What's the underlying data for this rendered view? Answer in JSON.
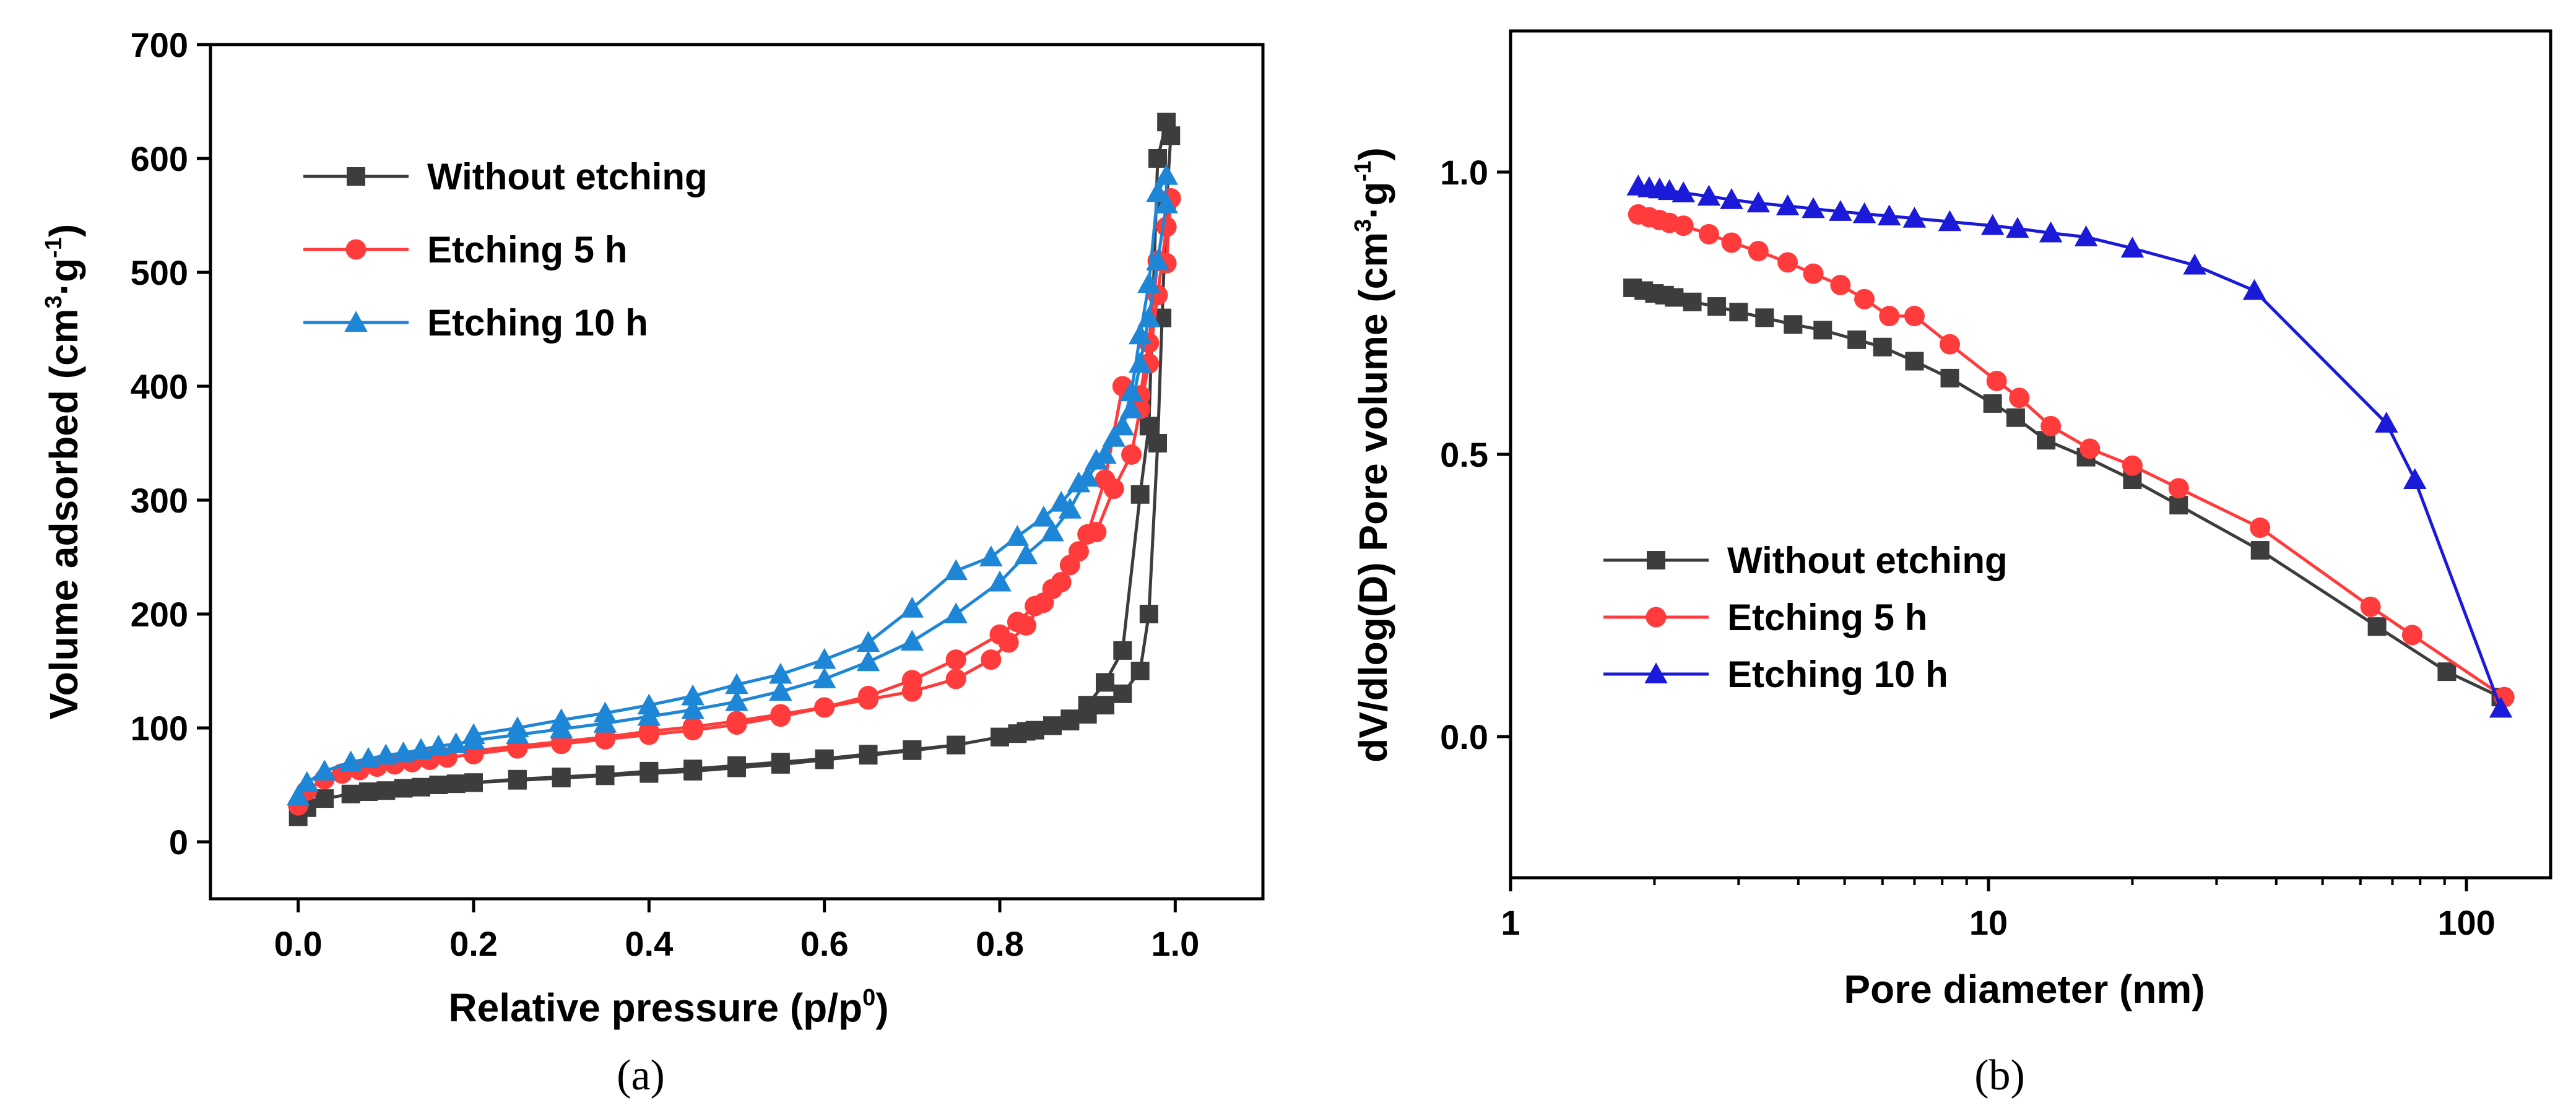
{
  "colors": {
    "without": "#3d3d3d",
    "etch5": "#ff3b3b",
    "etch10_a": "#1e86d6",
    "etch10_b": "#1a1ad8"
  },
  "chart_data": [
    {
      "type": "line",
      "panel_label": "(a)",
      "xlabel": "Relative pressure (p/p",
      "xlabel_sup": "0",
      "xlabel_end": ")",
      "ylabel": "Volume adsorbed (cm",
      "ylabel_sup1": "3",
      "ylabel_mid": "·g",
      "ylabel_sup2": "-1",
      "ylabel_end": ")",
      "xlim": [
        -0.1,
        1.1
      ],
      "ylim": [
        -50,
        700
      ],
      "xticks": [
        0.0,
        0.2,
        0.4,
        0.6,
        0.8,
        1.0
      ],
      "xtick_labels": [
        "0.0",
        "0.2",
        "0.4",
        "0.6",
        "0.8",
        "1.0"
      ],
      "yticks": [
        0,
        100,
        200,
        300,
        400,
        500,
        600,
        700
      ],
      "ytick_labels": [
        "0",
        "100",
        "200",
        "300",
        "400",
        "500",
        "600",
        "700"
      ],
      "legend": "top-left",
      "series": [
        {
          "name": "Without etching",
          "marker": "square",
          "color_key": "without",
          "x": [
            0.0,
            0.01,
            0.03,
            0.06,
            0.08,
            0.1,
            0.12,
            0.14,
            0.16,
            0.18,
            0.2,
            0.25,
            0.3,
            0.35,
            0.4,
            0.45,
            0.5,
            0.55,
            0.6,
            0.65,
            0.7,
            0.75,
            0.8,
            0.83,
            0.86,
            0.88,
            0.9,
            0.92,
            0.94,
            0.96,
            0.97,
            0.98,
            0.99,
            0.995,
            0.99,
            0.985,
            0.98,
            0.97,
            0.96,
            0.94,
            0.92,
            0.9,
            0.88,
            0.86,
            0.84,
            0.82,
            0.8,
            0.75,
            0.7,
            0.65,
            0.6,
            0.55,
            0.5,
            0.45,
            0.4,
            0.35,
            0.3,
            0.25,
            0.2
          ],
          "y": [
            22,
            30,
            38,
            42,
            44,
            45,
            47,
            48,
            50,
            51,
            52,
            55,
            57,
            59,
            62,
            64,
            67,
            70,
            73,
            77,
            81,
            85,
            92,
            97,
            102,
            108,
            120,
            140,
            168,
            305,
            365,
            600,
            632,
            620,
            560,
            460,
            350,
            200,
            150,
            130,
            120,
            112,
            106,
            102,
            98,
            95,
            92,
            85,
            80,
            76,
            72,
            68,
            65,
            62,
            60,
            58,
            56,
            54,
            52
          ]
        },
        {
          "name": "Etching 5 h",
          "marker": "circle",
          "color_key": "etch5",
          "x": [
            0.0,
            0.01,
            0.03,
            0.05,
            0.07,
            0.09,
            0.11,
            0.13,
            0.15,
            0.17,
            0.2,
            0.25,
            0.3,
            0.35,
            0.4,
            0.45,
            0.5,
            0.55,
            0.6,
            0.65,
            0.7,
            0.75,
            0.8,
            0.82,
            0.84,
            0.86,
            0.88,
            0.9,
            0.92,
            0.94,
            0.96,
            0.97,
            0.98,
            0.99,
            0.995,
            0.99,
            0.98,
            0.97,
            0.96,
            0.95,
            0.93,
            0.91,
            0.89,
            0.87,
            0.85,
            0.83,
            0.81,
            0.79,
            0.75,
            0.7,
            0.65,
            0.6,
            0.55,
            0.5,
            0.45,
            0.4,
            0.35,
            0.3,
            0.25,
            0.2
          ],
          "y": [
            32,
            45,
            55,
            60,
            63,
            66,
            68,
            70,
            72,
            74,
            77,
            82,
            86,
            90,
            94,
            98,
            103,
            110,
            118,
            128,
            142,
            160,
            182,
            193,
            207,
            222,
            243,
            270,
            318,
            400,
            392,
            438,
            510,
            508,
            565,
            540,
            480,
            420,
            380,
            340,
            310,
            272,
            255,
            228,
            210,
            190,
            175,
            160,
            143,
            132,
            125,
            118,
            112,
            106,
            101,
            97,
            92,
            88,
            84,
            80
          ]
        },
        {
          "name": "Etching 10 h",
          "marker": "triangle",
          "color_key": "etch10_a",
          "x": [
            0.0,
            0.01,
            0.03,
            0.06,
            0.08,
            0.1,
            0.12,
            0.14,
            0.16,
            0.18,
            0.2,
            0.25,
            0.3,
            0.35,
            0.4,
            0.45,
            0.5,
            0.55,
            0.6,
            0.65,
            0.7,
            0.75,
            0.8,
            0.83,
            0.86,
            0.88,
            0.9,
            0.92,
            0.94,
            0.95,
            0.96,
            0.97,
            0.98,
            0.99,
            0.99,
            0.98,
            0.97,
            0.96,
            0.95,
            0.93,
            0.91,
            0.89,
            0.87,
            0.85,
            0.82,
            0.79,
            0.75,
            0.7,
            0.65,
            0.6,
            0.55,
            0.5,
            0.45,
            0.4,
            0.35,
            0.3,
            0.25,
            0.2
          ],
          "y": [
            40,
            52,
            62,
            70,
            73,
            76,
            78,
            81,
            84,
            86,
            89,
            94,
            99,
            104,
            110,
            116,
            123,
            132,
            143,
            158,
            176,
            200,
            228,
            252,
            272,
            292,
            320,
            340,
            365,
            395,
            445,
            490,
            570,
            585,
            560,
            510,
            460,
            420,
            380,
            355,
            335,
            315,
            298,
            285,
            268,
            250,
            238,
            205,
            175,
            160,
            147,
            138,
            128,
            120,
            113,
            107,
            100,
            94
          ]
        }
      ]
    },
    {
      "type": "line",
      "panel_label": "(b)",
      "xlabel": "Pore diameter (nm)",
      "ylabel": "dV/dlog(D) Pore volume (cm",
      "ylabel_sup1": "3",
      "ylabel_mid": "·g",
      "ylabel_sup2": "-1",
      "ylabel_end": ")",
      "xscale": "log",
      "xlim": [
        1,
        150
      ],
      "ylim": [
        -0.25,
        1.25
      ],
      "xticks": [
        1,
        10,
        100
      ],
      "xtick_labels": [
        "1",
        "10",
        "100"
      ],
      "yticks": [
        0.0,
        0.5,
        1.0
      ],
      "ytick_labels": [
        "0.0",
        "0.5",
        "1.0"
      ],
      "legend": "bottom-left",
      "series": [
        {
          "name": "Without etching",
          "marker": "square",
          "color_key": "without",
          "x": [
            1.8,
            1.9,
            2.0,
            2.1,
            2.2,
            2.4,
            2.7,
            3.0,
            3.4,
            3.9,
            4.5,
            5.3,
            6.0,
            7.0,
            8.3,
            10.2,
            11.4,
            13.2,
            16.0,
            20.0,
            25.0,
            37.0,
            65.0,
            91.0,
            118.0
          ],
          "y": [
            0.795,
            0.79,
            0.785,
            0.782,
            0.778,
            0.77,
            0.762,
            0.752,
            0.742,
            0.73,
            0.72,
            0.703,
            0.69,
            0.665,
            0.635,
            0.59,
            0.565,
            0.525,
            0.495,
            0.455,
            0.41,
            0.33,
            0.195,
            0.115,
            0.07
          ]
        },
        {
          "name": "Etching 5 h",
          "marker": "circle",
          "color_key": "etch5",
          "x": [
            1.85,
            1.95,
            2.05,
            2.15,
            2.3,
            2.6,
            2.9,
            3.3,
            3.8,
            4.3,
            4.9,
            5.5,
            6.2,
            7.0,
            8.3,
            10.4,
            11.6,
            13.5,
            16.3,
            20.0,
            25.0,
            37.0,
            63.0,
            77.0,
            120.0
          ],
          "y": [
            0.925,
            0.92,
            0.915,
            0.91,
            0.905,
            0.89,
            0.875,
            0.86,
            0.84,
            0.82,
            0.8,
            0.775,
            0.745,
            0.745,
            0.695,
            0.63,
            0.6,
            0.55,
            0.51,
            0.48,
            0.44,
            0.37,
            0.23,
            0.18,
            0.07
          ]
        },
        {
          "name": "Etching 10 h",
          "marker": "triangle",
          "color_key": "etch10_b",
          "x": [
            1.85,
            1.95,
            2.05,
            2.15,
            2.3,
            2.6,
            2.9,
            3.3,
            3.8,
            4.3,
            4.9,
            5.5,
            6.2,
            7.0,
            8.3,
            10.2,
            11.5,
            13.5,
            16.0,
            20.0,
            27.0,
            36.0,
            68.0,
            78.0,
            118.0
          ],
          "y": [
            0.975,
            0.972,
            0.97,
            0.967,
            0.963,
            0.957,
            0.951,
            0.945,
            0.94,
            0.935,
            0.93,
            0.926,
            0.922,
            0.918,
            0.912,
            0.905,
            0.9,
            0.892,
            0.885,
            0.865,
            0.835,
            0.79,
            0.555,
            0.455,
            0.05
          ]
        }
      ]
    }
  ]
}
